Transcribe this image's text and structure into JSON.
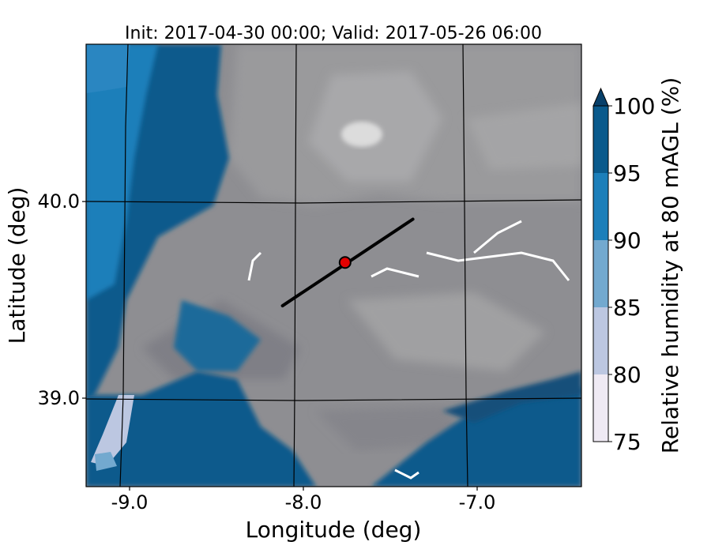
{
  "chart_data": {
    "type": "heatmap",
    "title": "Init: 2017-04-30 00:00; Valid: 2017-05-26 06:00",
    "xlabel": "Longitude (deg)",
    "ylabel": "Latitude (deg)",
    "xlim": [
      -9.25,
      -6.4
    ],
    "ylim": [
      38.55,
      40.8
    ],
    "x_ticks": [
      -9.0,
      -8.0,
      -7.0
    ],
    "x_tick_labels": [
      "-9.0",
      "-8.0",
      "-7.0"
    ],
    "y_ticks": [
      39.0,
      40.0
    ],
    "y_tick_labels": [
      "39.0",
      "40.0"
    ],
    "grid": true,
    "colorbar": {
      "label": "Relative humidity at 80 mAGL (%)",
      "levels": [
        75,
        80,
        85,
        90,
        95,
        100
      ],
      "tick_labels": [
        "75",
        "80",
        "85",
        "90",
        "95",
        "100"
      ],
      "colors": [
        "#efeaf4",
        "#bcc7e1",
        "#73a9cf",
        "#1c7fba",
        "#0a5a8c"
      ],
      "extend": "max",
      "extend_color": "#08406a"
    },
    "overlay": {
      "transect": {
        "start": [
          -8.12,
          39.47
        ],
        "end": [
          -7.37,
          39.91
        ]
      },
      "marker": {
        "lon": -7.76,
        "lat": 39.69,
        "color": "#e30000"
      }
    },
    "below_range_fill": "grayscale terrain shading"
  }
}
